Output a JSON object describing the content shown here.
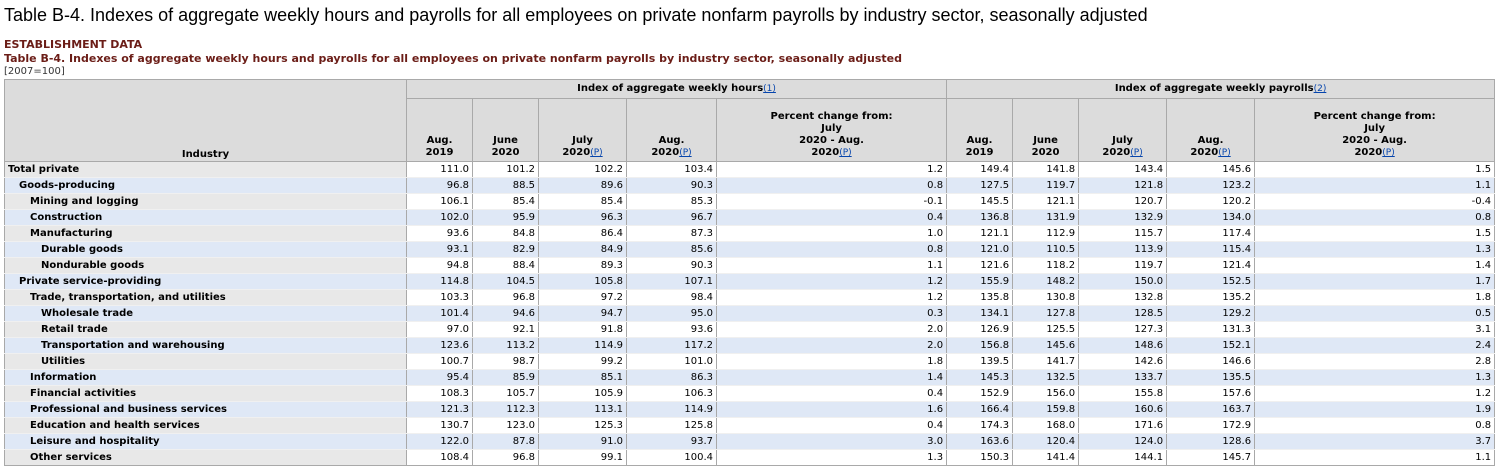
{
  "page_title": "Table B-4. Indexes of aggregate weekly hours and payrolls for all employees on private nonfarm payrolls by industry sector, seasonally adjusted",
  "section_label": "ESTABLISHMENT DATA",
  "table_title": "Table B-4. Indexes of aggregate weekly hours and payrolls for all employees on private nonfarm payrolls by industry sector, seasonally adjusted",
  "basis": "[2007=100]",
  "header": {
    "industry": "Industry",
    "hours_group": "Index of aggregate weekly hours",
    "hours_footnote": "(1)",
    "payrolls_group": "Index of aggregate weekly payrolls",
    "payrolls_footnote": "(2)",
    "preliminary_mark": "(P)",
    "col_aug2019_a": "Aug.",
    "col_aug2019_b": "2019",
    "col_jun2020_a": "June",
    "col_jun2020_b": "2020",
    "col_jul2020_a": "July",
    "col_jul2020_b": "2020",
    "col_aug2020_a": "Aug.",
    "col_aug2020_b": "2020",
    "pct_line1": "Percent change from:",
    "pct_line2": "July",
    "pct_line3": "2020 - Aug.",
    "pct_line4": "2020"
  },
  "rows": [
    {
      "industry": "Total private",
      "level": 0,
      "hours": [
        "111.0",
        "101.2",
        "102.2",
        "103.4",
        "1.2"
      ],
      "payrolls": [
        "149.4",
        "141.8",
        "143.4",
        "145.6",
        "1.5"
      ]
    },
    {
      "industry": "Goods-producing",
      "level": 1,
      "hours": [
        "96.8",
        "88.5",
        "89.6",
        "90.3",
        "0.8"
      ],
      "payrolls": [
        "127.5",
        "119.7",
        "121.8",
        "123.2",
        "1.1"
      ]
    },
    {
      "industry": "Mining and logging",
      "level": 2,
      "hours": [
        "106.1",
        "85.4",
        "85.4",
        "85.3",
        "-0.1"
      ],
      "payrolls": [
        "145.5",
        "121.1",
        "120.7",
        "120.2",
        "-0.4"
      ]
    },
    {
      "industry": "Construction",
      "level": 2,
      "hours": [
        "102.0",
        "95.9",
        "96.3",
        "96.7",
        "0.4"
      ],
      "payrolls": [
        "136.8",
        "131.9",
        "132.9",
        "134.0",
        "0.8"
      ]
    },
    {
      "industry": "Manufacturing",
      "level": 2,
      "hours": [
        "93.6",
        "84.8",
        "86.4",
        "87.3",
        "1.0"
      ],
      "payrolls": [
        "121.1",
        "112.9",
        "115.7",
        "117.4",
        "1.5"
      ]
    },
    {
      "industry": "Durable goods",
      "level": 3,
      "hours": [
        "93.1",
        "82.9",
        "84.9",
        "85.6",
        "0.8"
      ],
      "payrolls": [
        "121.0",
        "110.5",
        "113.9",
        "115.4",
        "1.3"
      ]
    },
    {
      "industry": "Nondurable goods",
      "level": 3,
      "hours": [
        "94.8",
        "88.4",
        "89.3",
        "90.3",
        "1.1"
      ],
      "payrolls": [
        "121.6",
        "118.2",
        "119.7",
        "121.4",
        "1.4"
      ]
    },
    {
      "industry": "Private service-providing",
      "level": 1,
      "hours": [
        "114.8",
        "104.5",
        "105.8",
        "107.1",
        "1.2"
      ],
      "payrolls": [
        "155.9",
        "148.2",
        "150.0",
        "152.5",
        "1.7"
      ]
    },
    {
      "industry": "Trade, transportation, and utilities",
      "level": 2,
      "hours": [
        "103.3",
        "96.8",
        "97.2",
        "98.4",
        "1.2"
      ],
      "payrolls": [
        "135.8",
        "130.8",
        "132.8",
        "135.2",
        "1.8"
      ]
    },
    {
      "industry": "Wholesale trade",
      "level": 3,
      "hours": [
        "101.4",
        "94.6",
        "94.7",
        "95.0",
        "0.3"
      ],
      "payrolls": [
        "134.1",
        "127.8",
        "128.5",
        "129.2",
        "0.5"
      ]
    },
    {
      "industry": "Retail trade",
      "level": 3,
      "hours": [
        "97.0",
        "92.1",
        "91.8",
        "93.6",
        "2.0"
      ],
      "payrolls": [
        "126.9",
        "125.5",
        "127.3",
        "131.3",
        "3.1"
      ]
    },
    {
      "industry": "Transportation and warehousing",
      "level": 3,
      "hours": [
        "123.6",
        "113.2",
        "114.9",
        "117.2",
        "2.0"
      ],
      "payrolls": [
        "156.8",
        "145.6",
        "148.6",
        "152.1",
        "2.4"
      ]
    },
    {
      "industry": "Utilities",
      "level": 3,
      "hours": [
        "100.7",
        "98.7",
        "99.2",
        "101.0",
        "1.8"
      ],
      "payrolls": [
        "139.5",
        "141.7",
        "142.6",
        "146.6",
        "2.8"
      ]
    },
    {
      "industry": "Information",
      "level": 2,
      "hours": [
        "95.4",
        "85.9",
        "85.1",
        "86.3",
        "1.4"
      ],
      "payrolls": [
        "145.3",
        "132.5",
        "133.7",
        "135.5",
        "1.3"
      ]
    },
    {
      "industry": "Financial activities",
      "level": 2,
      "hours": [
        "108.3",
        "105.7",
        "105.9",
        "106.3",
        "0.4"
      ],
      "payrolls": [
        "152.9",
        "156.0",
        "155.8",
        "157.6",
        "1.2"
      ]
    },
    {
      "industry": "Professional and business services",
      "level": 2,
      "hours": [
        "121.3",
        "112.3",
        "113.1",
        "114.9",
        "1.6"
      ],
      "payrolls": [
        "166.4",
        "159.8",
        "160.6",
        "163.7",
        "1.9"
      ]
    },
    {
      "industry": "Education and health services",
      "level": 2,
      "hours": [
        "130.7",
        "123.0",
        "125.3",
        "125.8",
        "0.4"
      ],
      "payrolls": [
        "174.3",
        "168.0",
        "171.6",
        "172.9",
        "0.8"
      ]
    },
    {
      "industry": "Leisure and hospitality",
      "level": 2,
      "hours": [
        "122.0",
        "87.8",
        "91.0",
        "93.7",
        "3.0"
      ],
      "payrolls": [
        "163.6",
        "120.4",
        "124.0",
        "128.6",
        "3.7"
      ]
    },
    {
      "industry": "Other services",
      "level": 2,
      "hours": [
        "108.4",
        "96.8",
        "99.1",
        "100.4",
        "1.3"
      ],
      "payrolls": [
        "150.3",
        "141.4",
        "144.1",
        "145.7",
        "1.1"
      ]
    }
  ]
}
